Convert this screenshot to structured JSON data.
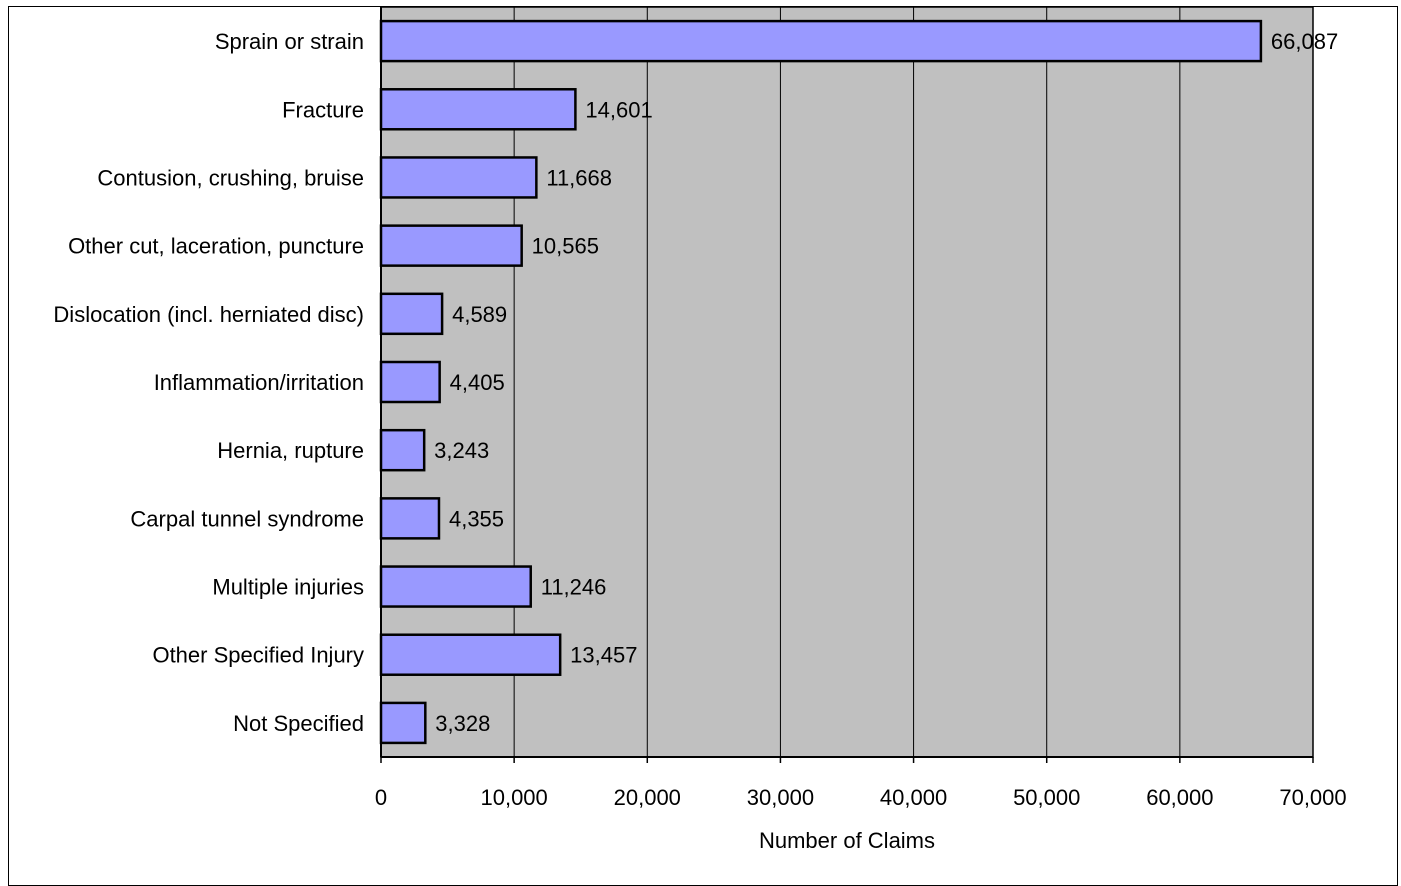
{
  "chart_data": {
    "type": "bar",
    "orientation": "horizontal",
    "title": "",
    "xlabel": "Number of Claims",
    "ylabel": "",
    "xlim": [
      0,
      70000
    ],
    "ticks": [
      0,
      10000,
      20000,
      30000,
      40000,
      50000,
      60000,
      70000
    ],
    "tick_labels": [
      "0",
      "10,000",
      "20,000",
      "30,000",
      "40,000",
      "50,000",
      "60,000",
      "70,000"
    ],
    "grid": "vertical",
    "categories": [
      "Sprain or strain",
      "Fracture",
      "Contusion, crushing, bruise",
      "Other cut, laceration, puncture",
      "Dislocation (incl. herniated disc)",
      "Inflammation/irritation",
      "Hernia, rupture",
      "Carpal tunnel syndrome",
      "Multiple injuries",
      "Other Specified Injury",
      "Not Specified"
    ],
    "values": [
      66087,
      14601,
      11668,
      10565,
      4589,
      4405,
      3243,
      4355,
      11246,
      13457,
      3328
    ],
    "value_labels": [
      "66,087",
      "14,601",
      "11,668",
      "10,565",
      "4,589",
      "4,405",
      "3,243",
      "4,355",
      "11,246",
      "13,457",
      "3,328"
    ],
    "colors": {
      "bar_fill": "#9999ff",
      "bar_stroke": "#000000",
      "plot_bg": "#c0c0c0",
      "grid": "#000000"
    }
  }
}
